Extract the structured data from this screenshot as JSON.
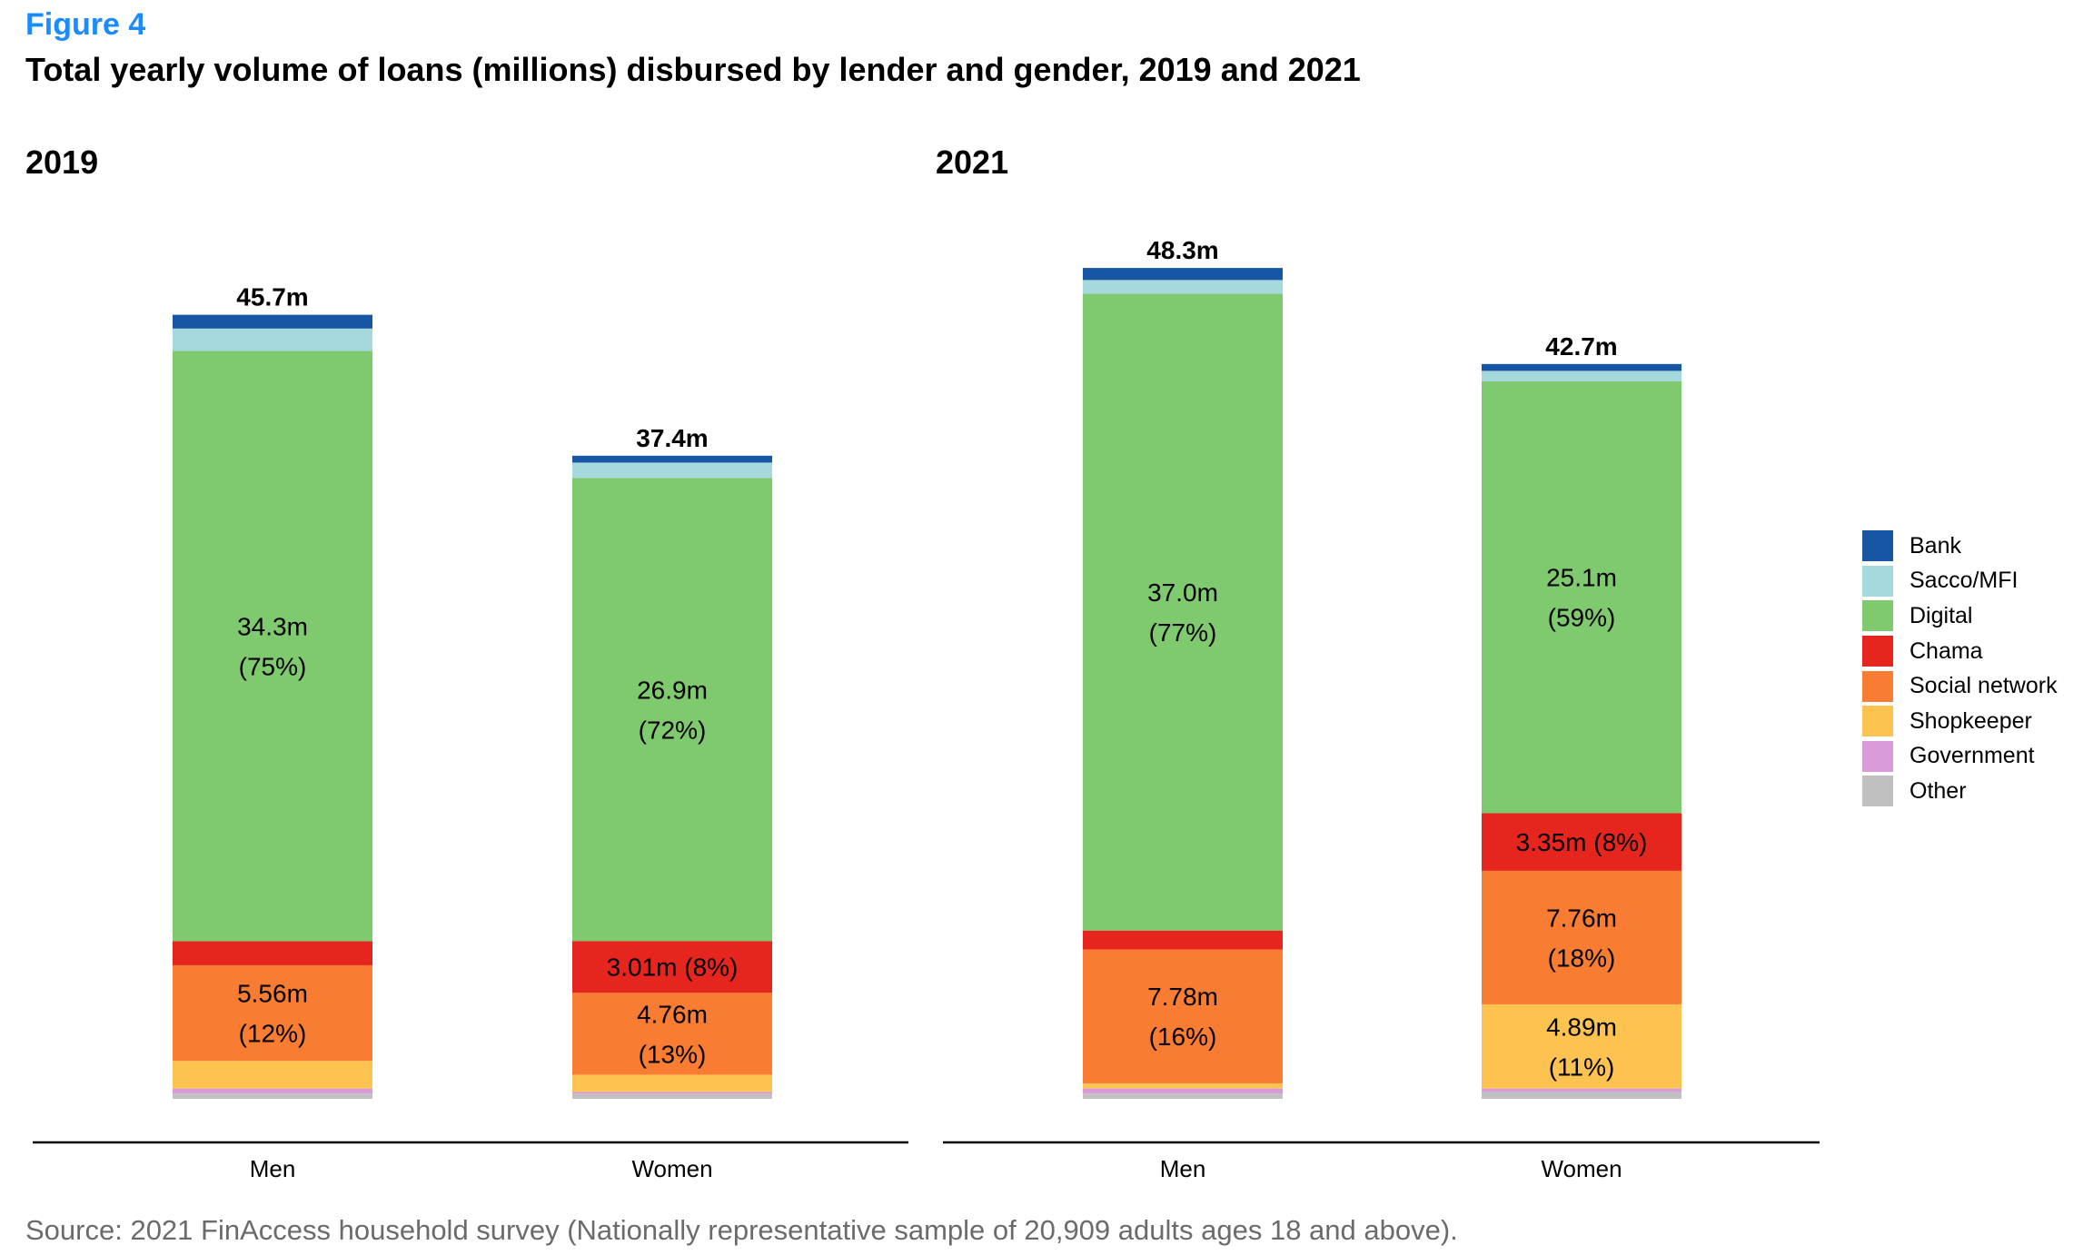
{
  "figure_label": "Figure 4",
  "title": "Total yearly volume of loans (millions) disbursed by lender and gender, 2019 and 2021",
  "source": "Source: 2021 FinAccess household survey (Nationally representative sample of 20,909  adults ages 18 and above).",
  "colors": {
    "Bank": "#1656a3",
    "Sacco/MFI": "#a6d9de",
    "Digital": "#7fc96f",
    "Chama": "#e6251e",
    "Social network": "#f97c33",
    "Shopkeeper": "#fdc350",
    "Government": "#d89ad8",
    "Other": "#c0c0c0"
  },
  "chart_data": [
    {
      "type": "bar",
      "stacked": true,
      "title": "2019",
      "categories": [
        "Men",
        "Women"
      ],
      "totals": [
        "45.7m",
        "37.4m"
      ],
      "series": [
        {
          "name": "Other",
          "values": [
            0.3,
            0.3
          ]
        },
        {
          "name": "Government",
          "values": [
            0.3,
            0.1
          ]
        },
        {
          "name": "Shopkeeper",
          "values": [
            1.6,
            1.0
          ]
        },
        {
          "name": "Social network",
          "values": [
            5.56,
            4.76
          ]
        },
        {
          "name": "Chama",
          "values": [
            1.4,
            3.01
          ]
        },
        {
          "name": "Digital",
          "values": [
            34.3,
            26.9
          ]
        },
        {
          "name": "Sacco/MFI",
          "values": [
            1.3,
            0.9
          ]
        },
        {
          "name": "Bank",
          "values": [
            0.8,
            0.4
          ]
        }
      ],
      "segment_labels": [
        {
          "category": "Men",
          "series": "Digital",
          "lines": [
            "34.3m",
            "(75%)"
          ]
        },
        {
          "category": "Men",
          "series": "Social network",
          "lines": [
            "5.56m",
            "(12%)"
          ]
        },
        {
          "category": "Women",
          "series": "Digital",
          "lines": [
            "26.9m",
            "(72%)"
          ]
        },
        {
          "category": "Women",
          "series": "Chama",
          "lines": [
            "3.01m (8%)"
          ]
        },
        {
          "category": "Women",
          "series": "Social network",
          "lines": [
            "4.76m",
            "(13%)"
          ]
        }
      ]
    },
    {
      "type": "bar",
      "stacked": true,
      "title": "2021",
      "categories": [
        "Men",
        "Women"
      ],
      "totals": [
        "48.3m",
        "42.7m"
      ],
      "series": [
        {
          "name": "Other",
          "values": [
            0.3,
            0.4
          ]
        },
        {
          "name": "Government",
          "values": [
            0.3,
            0.2
          ]
        },
        {
          "name": "Shopkeeper",
          "values": [
            0.3,
            4.89
          ]
        },
        {
          "name": "Social network",
          "values": [
            7.78,
            7.76
          ]
        },
        {
          "name": "Chama",
          "values": [
            1.1,
            3.35
          ]
        },
        {
          "name": "Digital",
          "values": [
            37.0,
            25.1
          ]
        },
        {
          "name": "Sacco/MFI",
          "values": [
            0.8,
            0.6
          ]
        },
        {
          "name": "Bank",
          "values": [
            0.7,
            0.4
          ]
        }
      ],
      "segment_labels": [
        {
          "category": "Men",
          "series": "Digital",
          "lines": [
            "37.0m",
            "(77%)"
          ]
        },
        {
          "category": "Men",
          "series": "Social network",
          "lines": [
            "7.78m",
            "(16%)"
          ]
        },
        {
          "category": "Women",
          "series": "Digital",
          "lines": [
            "25.1m",
            "(59%)"
          ]
        },
        {
          "category": "Women",
          "series": "Chama",
          "lines": [
            "3.35m (8%)"
          ]
        },
        {
          "category": "Women",
          "series": "Social network",
          "lines": [
            "7.76m",
            "(18%)"
          ]
        },
        {
          "category": "Women",
          "series": "Shopkeeper",
          "lines": [
            "4.89m",
            "(11%)"
          ]
        }
      ]
    }
  ],
  "legend": [
    "Bank",
    "Sacco/MFI",
    "Digital",
    "Chama",
    "Social network",
    "Shopkeeper",
    "Government",
    "Other"
  ]
}
